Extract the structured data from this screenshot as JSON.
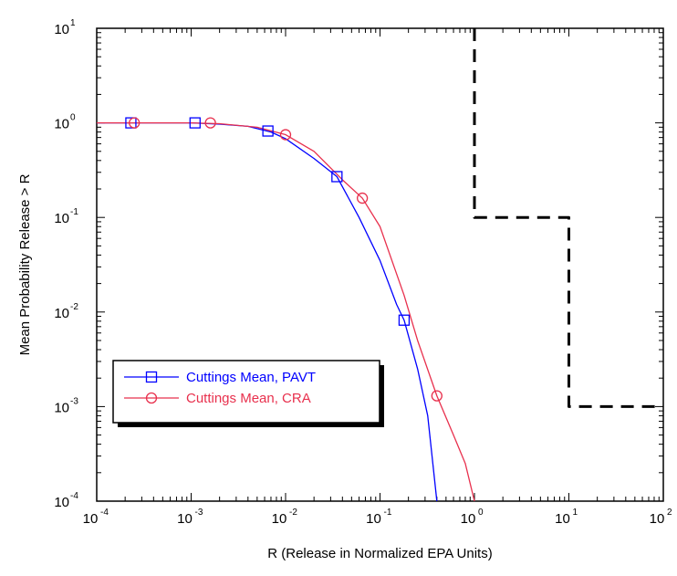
{
  "chart_data": {
    "type": "line",
    "title": "",
    "xlabel": "R (Release in Normalized EPA Units)",
    "ylabel": "Mean Probability Release > R",
    "xscale": "log",
    "yscale": "log",
    "xlim": [
      0.0001,
      100
    ],
    "ylim": [
      0.0001,
      10
    ],
    "grid": false,
    "legend_position": "lower-left",
    "x_ticks": [
      {
        "base": "10",
        "exp": "-4"
      },
      {
        "base": "10",
        "exp": "-3"
      },
      {
        "base": "10",
        "exp": "-2"
      },
      {
        "base": "10",
        "exp": "-1"
      },
      {
        "base": "10",
        "exp": "0"
      },
      {
        "base": "10",
        "exp": "1"
      },
      {
        "base": "10",
        "exp": "2"
      }
    ],
    "y_ticks": [
      {
        "base": "10",
        "exp": "-4"
      },
      {
        "base": "10",
        "exp": "-3"
      },
      {
        "base": "10",
        "exp": "-2"
      },
      {
        "base": "10",
        "exp": "-1"
      },
      {
        "base": "10",
        "exp": "0"
      },
      {
        "base": "10",
        "exp": "1"
      }
    ],
    "series": [
      {
        "name": "Cuttings Mean, PAVT",
        "color": "#0000ff",
        "marker": "square",
        "x": [
          0.0001,
          0.0003,
          0.001,
          0.002,
          0.004,
          0.007,
          0.01,
          0.02,
          0.035,
          0.06,
          0.1,
          0.15,
          0.18,
          0.25,
          0.32,
          0.4
        ],
        "y": [
          1.0,
          1.0,
          1.0,
          0.97,
          0.92,
          0.8,
          0.68,
          0.42,
          0.27,
          0.1,
          0.035,
          0.012,
          0.0082,
          0.0025,
          0.0008,
          0.0001
        ],
        "markers_x": [
          0.00023,
          0.0011,
          0.0065,
          0.035,
          0.18
        ],
        "markers_y": [
          1.0,
          1.0,
          0.82,
          0.27,
          0.0082
        ]
      },
      {
        "name": "Cuttings Mean, CRA",
        "color": "#e8304d",
        "marker": "circle",
        "x": [
          0.0001,
          0.0003,
          0.001,
          0.002,
          0.005,
          0.01,
          0.02,
          0.04,
          0.065,
          0.1,
          0.18,
          0.25,
          0.4,
          0.6,
          0.8,
          1.0
        ],
        "y": [
          1.0,
          1.0,
          1.0,
          0.98,
          0.9,
          0.75,
          0.5,
          0.25,
          0.16,
          0.08,
          0.015,
          0.005,
          0.0013,
          0.0005,
          0.00025,
          0.0001
        ],
        "markers_x": [
          0.00025,
          0.0016,
          0.01,
          0.065,
          0.4
        ],
        "markers_y": [
          1.0,
          1.0,
          0.75,
          0.16,
          0.0013
        ]
      },
      {
        "color": "#000000",
        "style": "dashed",
        "x": [
          1,
          1,
          10,
          10,
          100
        ],
        "y": [
          10,
          0.1,
          0.1,
          0.001,
          0.001
        ]
      }
    ]
  }
}
